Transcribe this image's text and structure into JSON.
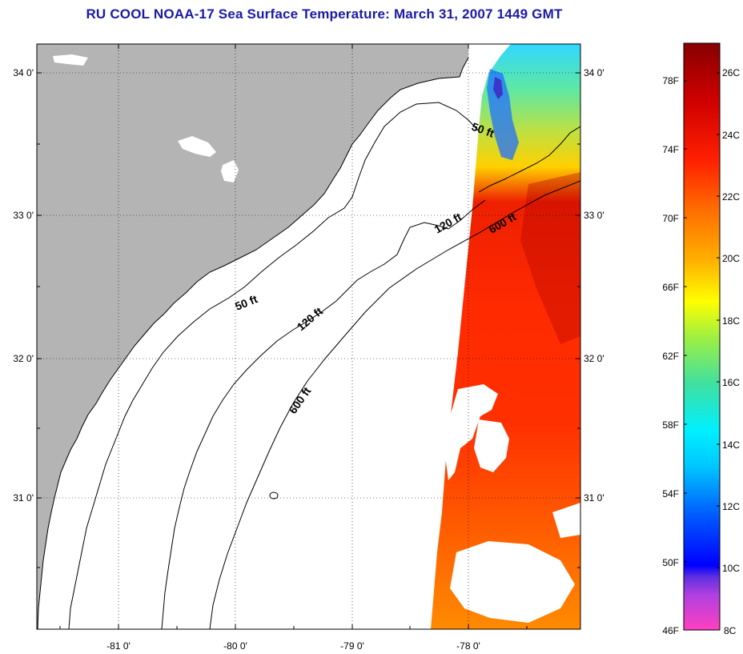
{
  "title": "RU COOL  NOAA-17  Sea Surface Temperature:  March 31, 2007 1449 GMT",
  "map": {
    "lon_range": [
      -81.7,
      -77.15
    ],
    "lat_range": [
      30.12,
      34.2
    ],
    "lon_ticks": [
      {
        "value": -81,
        "label": "-81 0'"
      },
      {
        "value": -80,
        "label": "-80 0'"
      },
      {
        "value": -79,
        "label": "-79 0'"
      },
      {
        "value": -78,
        "label": "-78 0'"
      }
    ],
    "lat_ticks": [
      {
        "value": 34,
        "label": "34 0'"
      },
      {
        "value": 33,
        "label": "33 0'"
      },
      {
        "value": 32,
        "label": "32 0'"
      },
      {
        "value": 31,
        "label": "31 0'"
      }
    ],
    "depth_labels": [
      "50 ft",
      "50 ft",
      "120 ft",
      "120 ft",
      "600 ft",
      "600 ft"
    ],
    "colors": {
      "land": "#b4b4b4",
      "ocean": "#ffffff",
      "contour": "#000000"
    }
  },
  "colorbar": {
    "min_c": 8,
    "max_c": 27,
    "celsius_labels": [
      "26C",
      "24C",
      "22C",
      "20C",
      "18C",
      "16C",
      "14C",
      "12C",
      "10C",
      "8C"
    ],
    "fahrenheit_labels": [
      "78F",
      "74F",
      "70F",
      "66F",
      "62F",
      "58F",
      "54F",
      "50F",
      "46F"
    ]
  }
}
